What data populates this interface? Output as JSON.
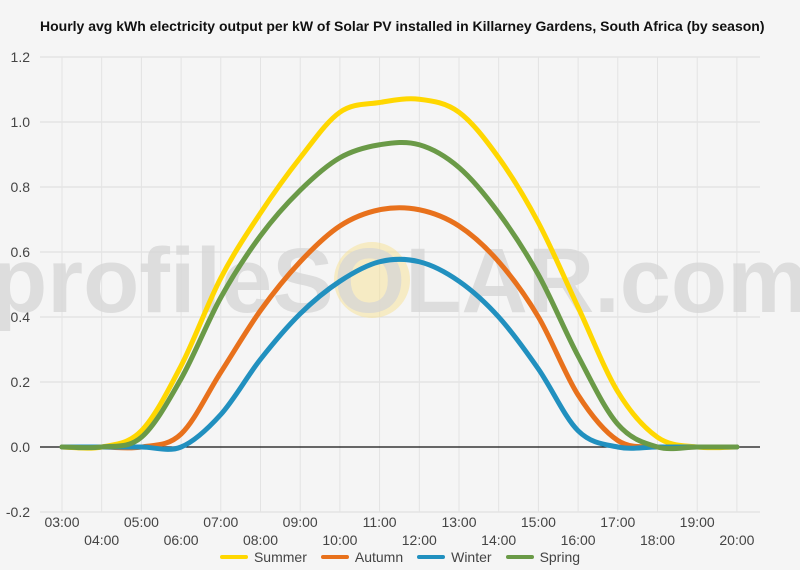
{
  "chart_data": {
    "type": "line",
    "title": "Hourly avg kWh electricity output per kW of Solar PV installed in Killarney Gardens, South Africa (by season)",
    "watermark": "profileSOLAR.com",
    "ylim": [
      -0.2,
      1.2
    ],
    "y_ticks": [
      "-0.2",
      "0.0",
      "0.2",
      "0.4",
      "0.6",
      "0.8",
      "1.0",
      "1.2"
    ],
    "x": [
      "03:00",
      "04:00",
      "05:00",
      "06:00",
      "07:00",
      "08:00",
      "09:00",
      "10:00",
      "11:00",
      "12:00",
      "13:00",
      "14:00",
      "15:00",
      "16:00",
      "17:00",
      "18:00",
      "19:00",
      "20:00"
    ],
    "grid": true,
    "legend_position": "bottom",
    "series": [
      {
        "name": "Summer",
        "color": "#FFD700",
        "values": [
          0.0,
          0.0,
          0.05,
          0.25,
          0.52,
          0.72,
          0.89,
          1.03,
          1.06,
          1.07,
          1.03,
          0.89,
          0.69,
          0.43,
          0.17,
          0.03,
          0.0,
          0.0
        ]
      },
      {
        "name": "Autumn",
        "color": "#E8711C",
        "values": [
          0.0,
          0.0,
          0.0,
          0.04,
          0.23,
          0.42,
          0.57,
          0.68,
          0.73,
          0.73,
          0.68,
          0.57,
          0.4,
          0.16,
          0.02,
          0.0,
          0.0,
          0.0
        ]
      },
      {
        "name": "Winter",
        "color": "#2190BF",
        "values": [
          0.0,
          0.0,
          0.0,
          0.0,
          0.1,
          0.27,
          0.41,
          0.51,
          0.57,
          0.57,
          0.51,
          0.4,
          0.24,
          0.05,
          0.0,
          0.0,
          0.0,
          0.0
        ]
      },
      {
        "name": "Spring",
        "color": "#6A9A47",
        "values": [
          0.0,
          0.0,
          0.03,
          0.21,
          0.46,
          0.65,
          0.79,
          0.89,
          0.93,
          0.93,
          0.86,
          0.72,
          0.53,
          0.28,
          0.07,
          0.0,
          0.0,
          0.0
        ]
      }
    ]
  }
}
